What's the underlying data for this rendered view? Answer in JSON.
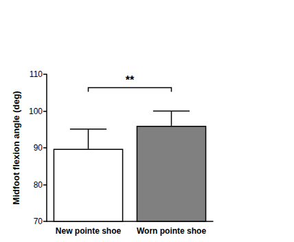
{
  "chart_data": {
    "type": "bar",
    "y_label": "Midfoot flexion angle (deg)",
    "categories": [
      "New pointe shoe",
      "Worn pointe shoe"
    ],
    "values": [
      89.7,
      96.0
    ],
    "errors": [
      5.4,
      4.0
    ],
    "colors": [
      "#ffffff",
      "#808080"
    ],
    "ylim": [
      70,
      110
    ],
    "yticks": [
      70,
      80,
      90,
      100,
      110
    ],
    "annotation": "**"
  }
}
